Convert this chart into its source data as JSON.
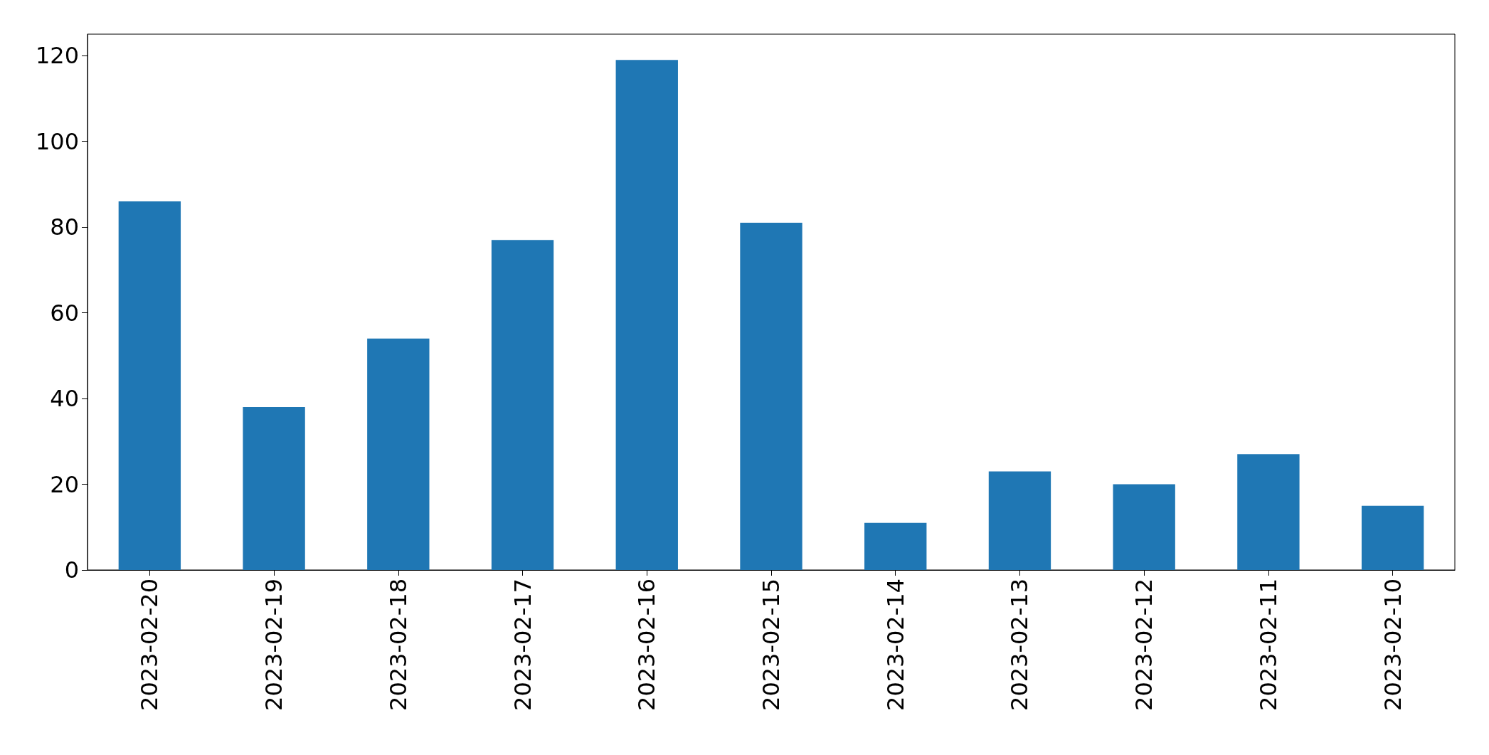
{
  "chart_data": {
    "type": "bar",
    "categories": [
      "2023-02-20",
      "2023-02-19",
      "2023-02-18",
      "2023-02-17",
      "2023-02-16",
      "2023-02-15",
      "2023-02-14",
      "2023-02-13",
      "2023-02-12",
      "2023-02-11",
      "2023-02-10"
    ],
    "values": [
      86,
      38,
      54,
      77,
      119,
      81,
      11,
      23,
      20,
      27,
      15
    ],
    "color": "#1f77b4",
    "ylim": [
      0,
      125
    ],
    "yticks": [
      0,
      20,
      40,
      60,
      80,
      100,
      120
    ],
    "grid": false
  }
}
